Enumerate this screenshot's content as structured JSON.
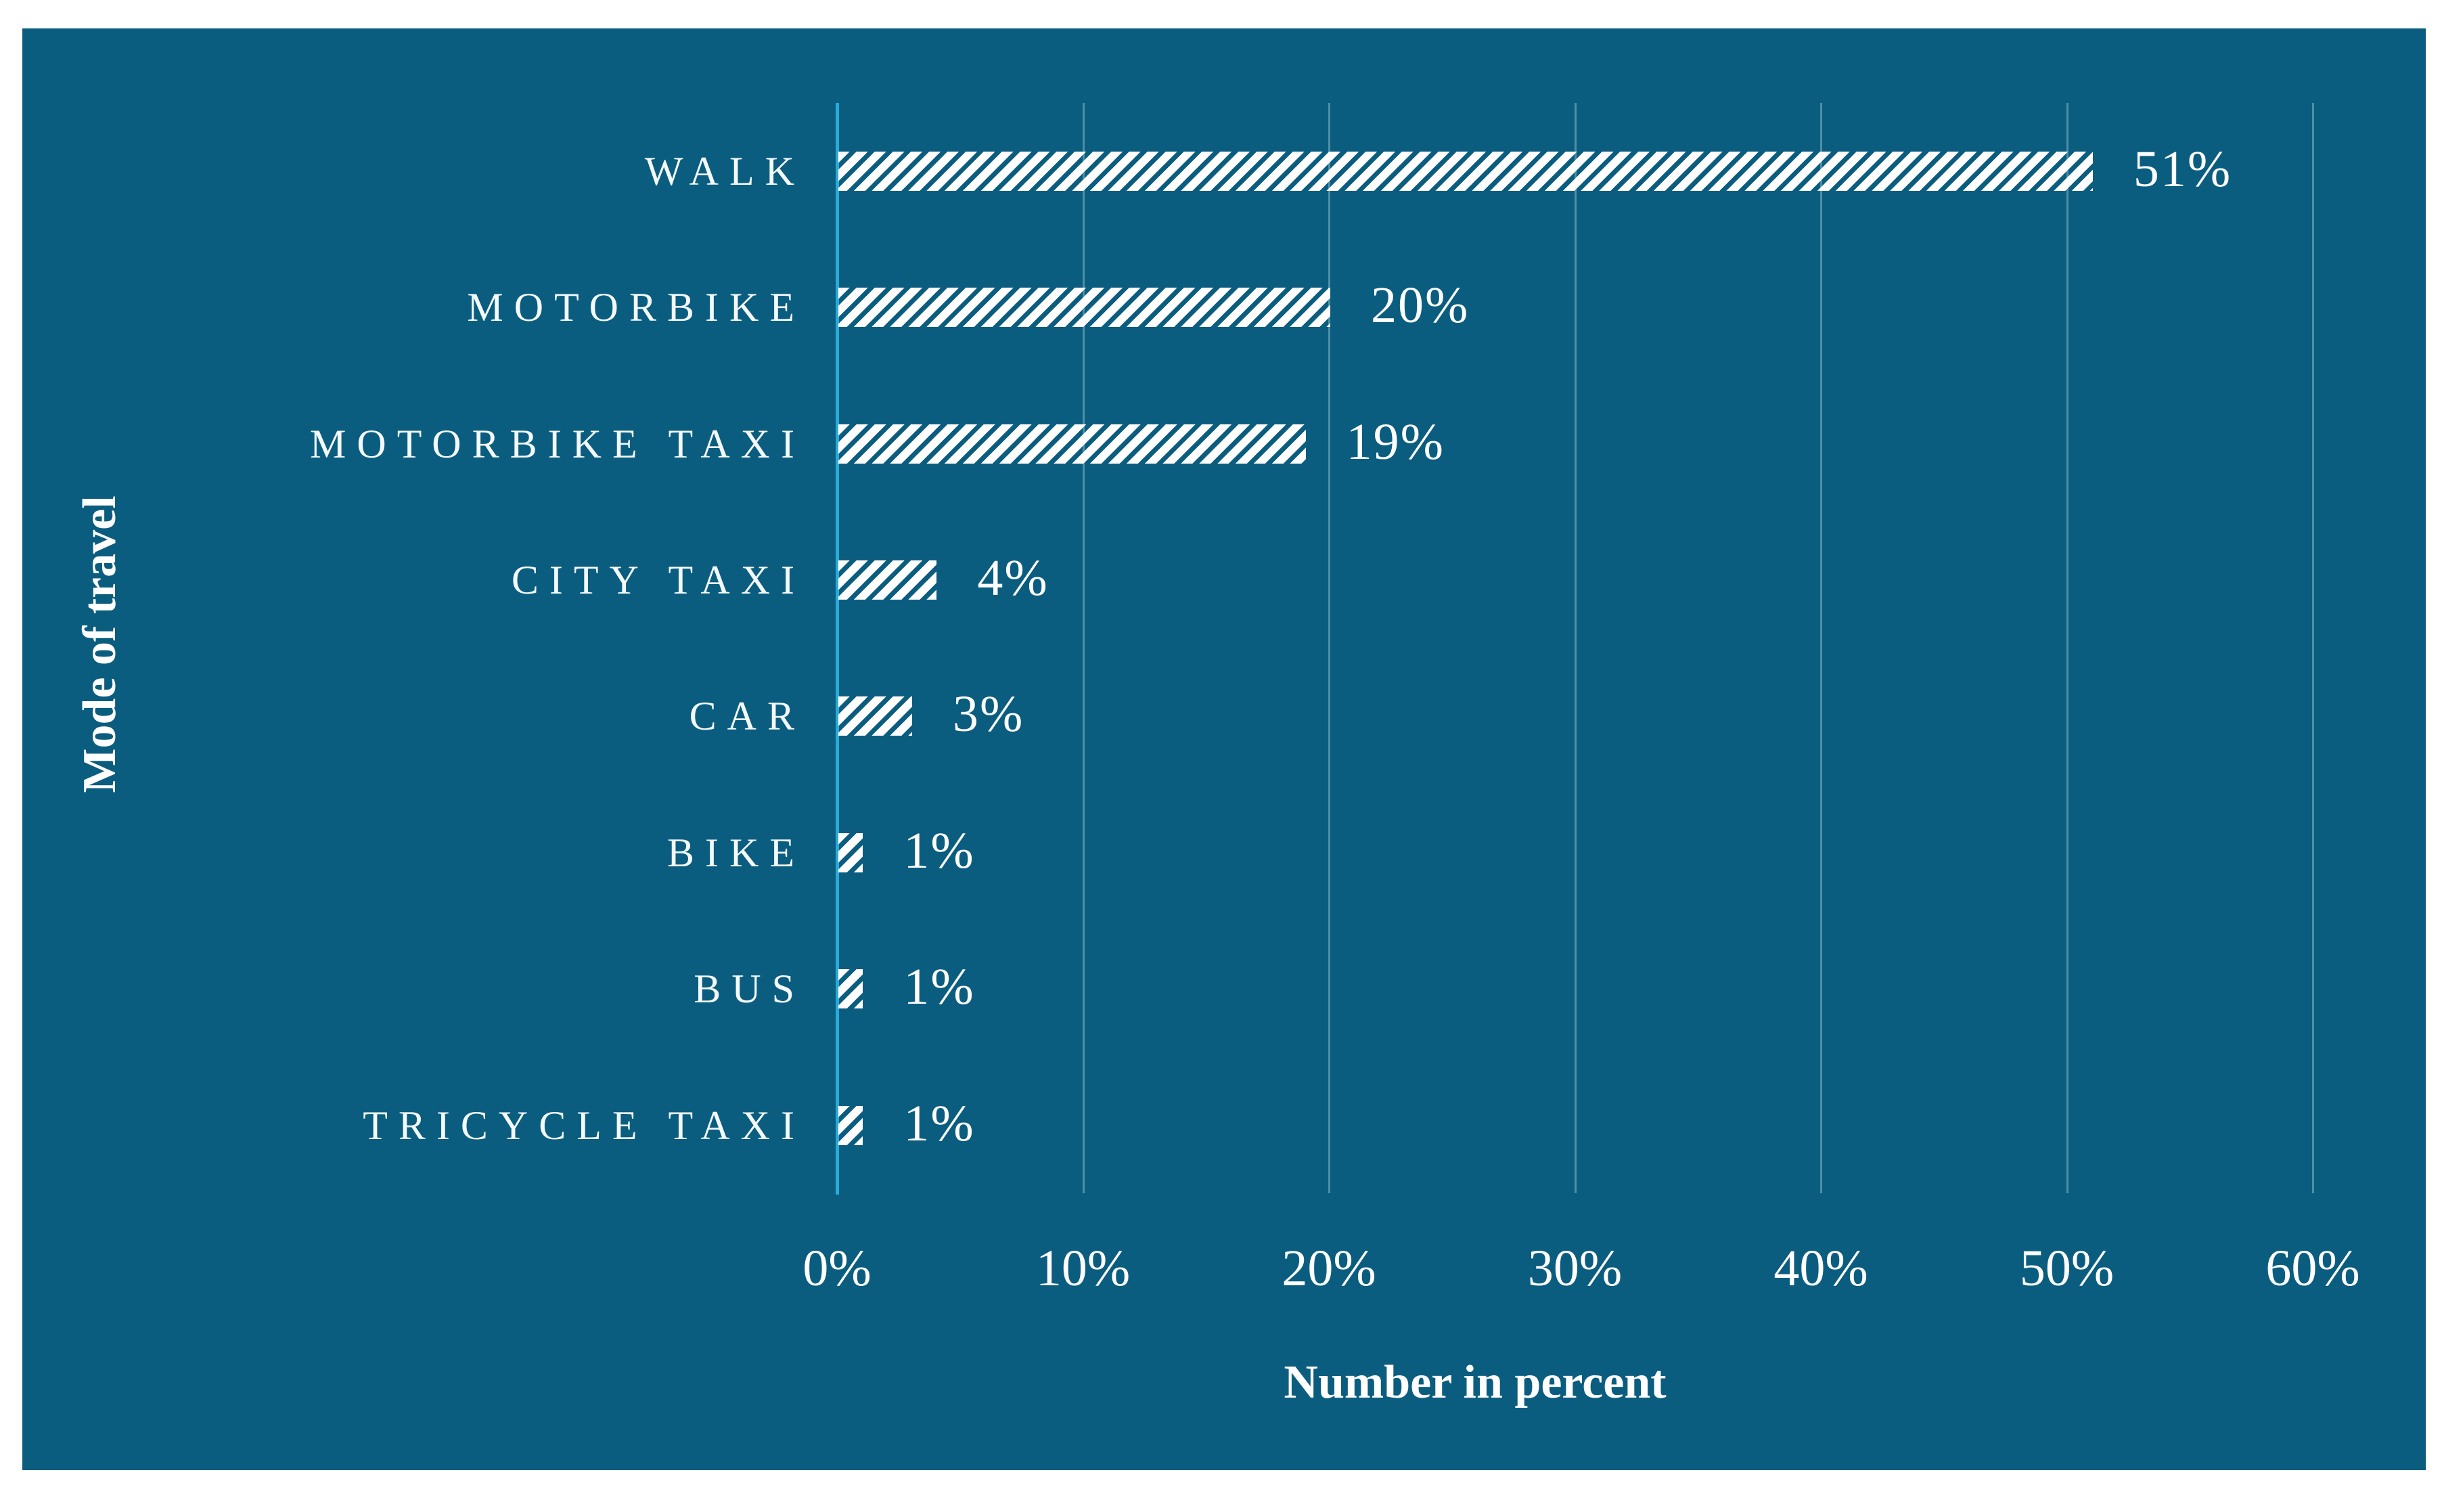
{
  "figure": {
    "title": "",
    "y_axis_title": "Mode of travel",
    "x_axis_title": "Number in percent"
  },
  "chart_data": {
    "type": "bar",
    "orientation": "horizontal",
    "categories": [
      "WALK",
      "MOTORBIKE",
      "MOTORBIKE TAXI",
      "CITY TAXI",
      "CAR",
      "BIKE",
      "BUS",
      "TRICYCLE TAXI"
    ],
    "values": [
      51,
      20,
      19,
      4,
      3,
      1,
      1,
      1
    ],
    "value_labels": [
      "51%",
      "20%",
      "19%",
      "4%",
      "3%",
      "1%",
      "1%",
      "1%"
    ],
    "xlabel": "Number in percent",
    "ylabel": "Mode of travel",
    "xlim": [
      0,
      60
    ],
    "x_tick_step": 10,
    "x_tick_labels": [
      "0%",
      "10%",
      "20%",
      "30%",
      "40%",
      "50%",
      "60%"
    ],
    "grid": "vertical-gridlines-on",
    "legend": "none",
    "bar_fill": "white-diagonal-hatch",
    "colors": {
      "panel_background": "#0b5d7f",
      "bar_foreground": "#ffffff",
      "axis_line": "#2aaad9",
      "gridline": "#4c8fa6",
      "text": "#ffffff"
    }
  }
}
